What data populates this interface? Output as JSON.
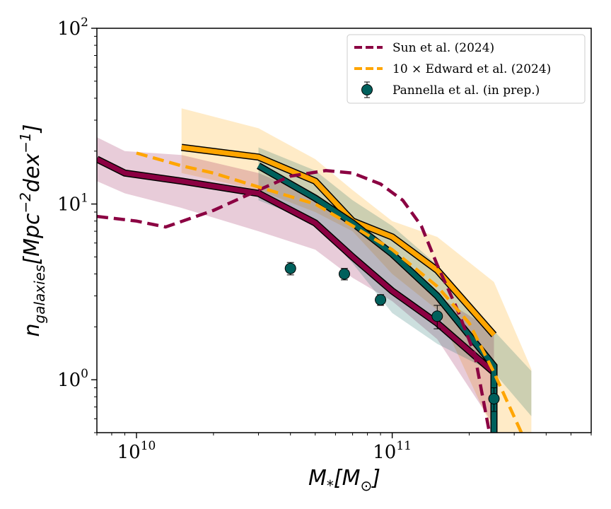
{
  "chart_data": {
    "type": "line",
    "xscale": "log",
    "yscale": "log",
    "xlim": [
      7000000000,
      600000000000
    ],
    "ylim": [
      0.5,
      100
    ],
    "x_ticks": [
      {
        "value": 10000000000,
        "base": "10",
        "exp": "10"
      },
      {
        "value": 100000000000,
        "base": "10",
        "exp": "11"
      }
    ],
    "y_ticks": [
      {
        "value": 1,
        "base": "10",
        "exp": "0"
      },
      {
        "value": 10,
        "base": "10",
        "exp": "1"
      },
      {
        "value": 100,
        "base": "10",
        "exp": "2"
      }
    ],
    "xlabel": {
      "main": "M",
      "sub": "*",
      "rest": "[M",
      "sub2": "⊙",
      "close": "]"
    },
    "ylabel": {
      "main": "n",
      "sub": "galaxies",
      "rest": "[Mpc",
      "sup1": "−2",
      "mid": "dex",
      "sup2": "−1",
      "close": "]"
    },
    "legend": {
      "placement": "top-right",
      "entries": [
        {
          "label": "Sun et al. (2024)",
          "style": "dashed",
          "color": "#8b0042"
        },
        {
          "label": "10 × Edward et al. (2024)",
          "style": "dashed",
          "color": "#ffa500"
        },
        {
          "label": "Pannella et al. (in prep.)",
          "style": "marker",
          "color": "#00605c"
        }
      ]
    },
    "bands": [
      {
        "color": "#ffa500",
        "opacity": 0.22,
        "x": [
          15000000000.0,
          30000000000.0,
          50000000000.0,
          70000000000.0,
          100000000000.0,
          150000000000.0,
          250000000000.0,
          350000000000.0
        ],
        "upper": [
          35,
          27,
          18,
          12,
          8,
          6.5,
          3.6,
          1.15
        ],
        "lower": [
          15,
          12,
          9,
          7,
          4,
          2.5,
          0.5,
          0.5
        ]
      },
      {
        "color": "#8b0042",
        "opacity": 0.2,
        "x": [
          7000000000.0,
          9000000000.0,
          15000000000.0,
          30000000000.0,
          50000000000.0,
          70000000000.0,
          100000000000.0,
          150000000000.0,
          250000000000.0
        ],
        "upper": [
          24,
          20,
          19,
          15,
          11,
          7.5,
          5,
          3,
          1.9
        ],
        "lower": [
          13.5,
          11.5,
          9.5,
          7,
          5.5,
          3.8,
          2.8,
          1.7,
          0.55
        ]
      },
      {
        "color": "#00605c",
        "opacity": 0.2,
        "x": [
          30000000000.0,
          50000000000.0,
          70000000000.0,
          100000000000.0,
          150000000000.0,
          250000000000.0,
          350000000000.0
        ],
        "upper": [
          21,
          15.5,
          10.5,
          7.5,
          4.5,
          1.9,
          1.12
        ],
        "lower": [
          10.5,
          7.8,
          4.6,
          2.4,
          1.6,
          1.1,
          0.62
        ]
      }
    ],
    "lines": [
      {
        "name": "",
        "style": "solid-outlined",
        "color": "#8b0042",
        "x": [
          7000000000.0,
          9000000000.0,
          15000000000.0,
          30000000000.0,
          50000000000.0,
          70000000000.0,
          100000000000.0,
          150000000000.0,
          250000000000.0
        ],
        "y": [
          18,
          15,
          13.5,
          11.5,
          7.8,
          5,
          3.2,
          2.1,
          1.1
        ]
      },
      {
        "name": "",
        "style": "solid-outlined",
        "color": "#ffa500",
        "x": [
          15000000000.0,
          30000000000.0,
          50000000000.0,
          70000000000.0,
          100000000000.0,
          150000000000.0,
          250000000000.0
        ],
        "y": [
          21,
          18.5,
          13.5,
          8,
          6.5,
          4.2,
          1.8
        ]
      },
      {
        "name": "",
        "style": "solid-outlined",
        "color": "#00605c",
        "x": [
          30000000000.0,
          50000000000.0,
          70000000000.0,
          100000000000.0,
          150000000000.0,
          250000000000.0,
          250000000000.0
        ],
        "y": [
          16.5,
          10.8,
          7.8,
          5.2,
          3,
          1.2,
          0.5
        ]
      },
      {
        "name": "Sun et al. (2024)",
        "style": "dashed",
        "color": "#8b0042",
        "x": [
          7000000000.0,
          10000000000.0,
          13000000000.0,
          20000000000.0,
          30000000000.0,
          40000000000.0,
          55000000000.0,
          70000000000.0,
          90000000000.0,
          110000000000.0,
          130000000000.0,
          150000000000.0,
          180000000000.0,
          210000000000.0,
          240000000000.0
        ],
        "y": [
          8.5,
          8,
          7.4,
          9.2,
          12,
          14.4,
          15.5,
          15,
          13,
          10.5,
          7.5,
          4.5,
          2.5,
          1.4,
          0.5
        ]
      },
      {
        "name": "10 × Edward et al. (2024)",
        "style": "dashed",
        "color": "#ffa500",
        "x": [
          10000000000.0,
          15000000000.0,
          20000000000.0,
          30000000000.0,
          50000000000.0,
          70000000000.0,
          100000000000.0,
          150000000000.0,
          200000000000.0,
          250000000000.0,
          320000000000.0
        ],
        "y": [
          19.5,
          16.5,
          15,
          12.5,
          10,
          7.5,
          5.5,
          3.4,
          2.1,
          1.1,
          0.5
        ]
      }
    ],
    "points": {
      "name": "Pannella et al. (in prep.)",
      "color": "#00605c",
      "x": [
        40000000000.0,
        65000000000.0,
        90000000000.0,
        150000000000.0,
        250000000000.0
      ],
      "y": [
        4.3,
        4.0,
        2.85,
        2.3,
        0.78
      ],
      "err": [
        0.35,
        0.3,
        0.2,
        0.35,
        0.12
      ]
    }
  }
}
